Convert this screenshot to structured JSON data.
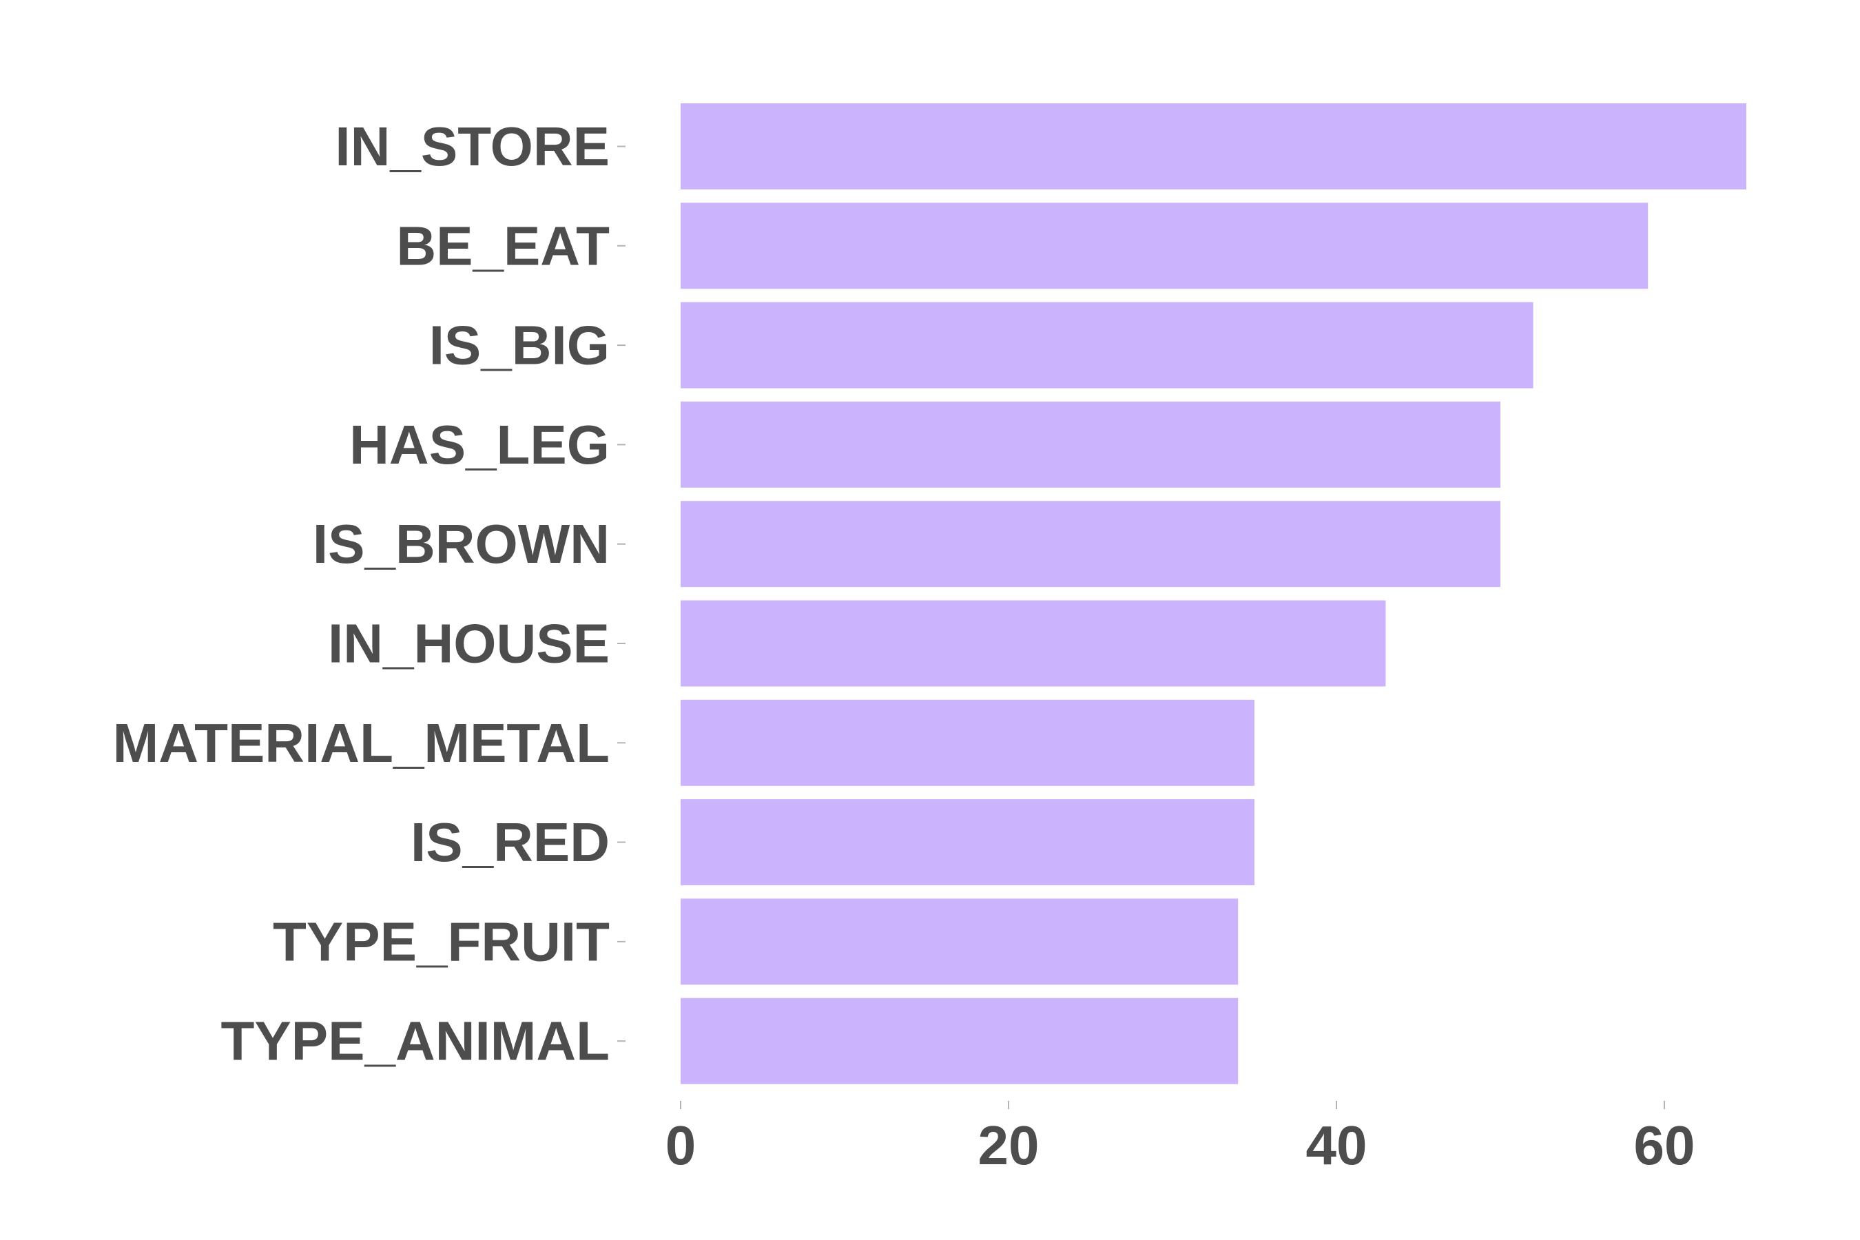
{
  "chart_data": {
    "type": "bar",
    "orientation": "horizontal",
    "categories": [
      "IN_STORE",
      "BE_EAT",
      "IS_BIG",
      "HAS_LEG",
      "IS_BROWN",
      "IN_HOUSE",
      "MATERIAL_METAL",
      "IS_RED",
      "TYPE_FRUIT",
      "TYPE_ANIMAL"
    ],
    "values": [
      65,
      59,
      52,
      50,
      50,
      43,
      35,
      35,
      34,
      34
    ],
    "title": "",
    "xlabel": "",
    "ylabel": "",
    "xlim": [
      0,
      68
    ],
    "x_ticks": [
      "0",
      "20",
      "40",
      "60"
    ],
    "grid": false,
    "legend": "none",
    "bar_color": "#cbb4fd",
    "text_color": "#4d4d4d"
  }
}
